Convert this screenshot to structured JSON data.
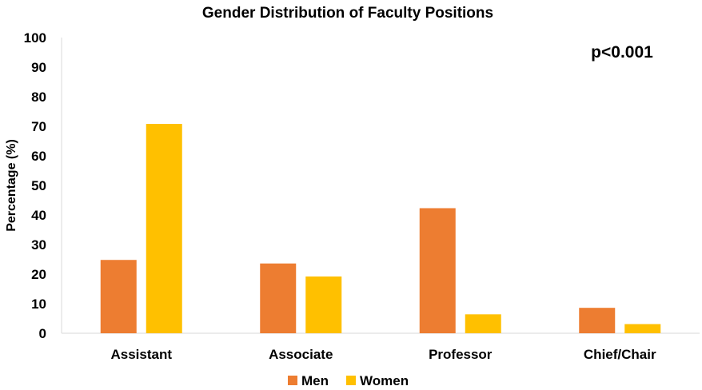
{
  "chart_data": {
    "type": "bar",
    "title": "Gender Distribution of Faculty Positions",
    "ylabel": "Percentage (%)",
    "xlabel": "",
    "ylim": [
      0,
      100
    ],
    "yticks": [
      "0",
      "10",
      "20",
      "30",
      "40",
      "50",
      "60",
      "70",
      "80",
      "90",
      "100"
    ],
    "categories": [
      "Assistant",
      "Associate",
      "Professor",
      "Chief/Chair"
    ],
    "series": [
      {
        "name": "Men",
        "color": "#ED7D31",
        "values": [
          24.8,
          23.6,
          42.3,
          8.6
        ]
      },
      {
        "name": "Women",
        "color": "#FFC000",
        "values": [
          70.8,
          19.2,
          6.4,
          3.1
        ]
      }
    ],
    "annotation": "p<0.001",
    "legend_position": "bottom",
    "grid": false
  }
}
